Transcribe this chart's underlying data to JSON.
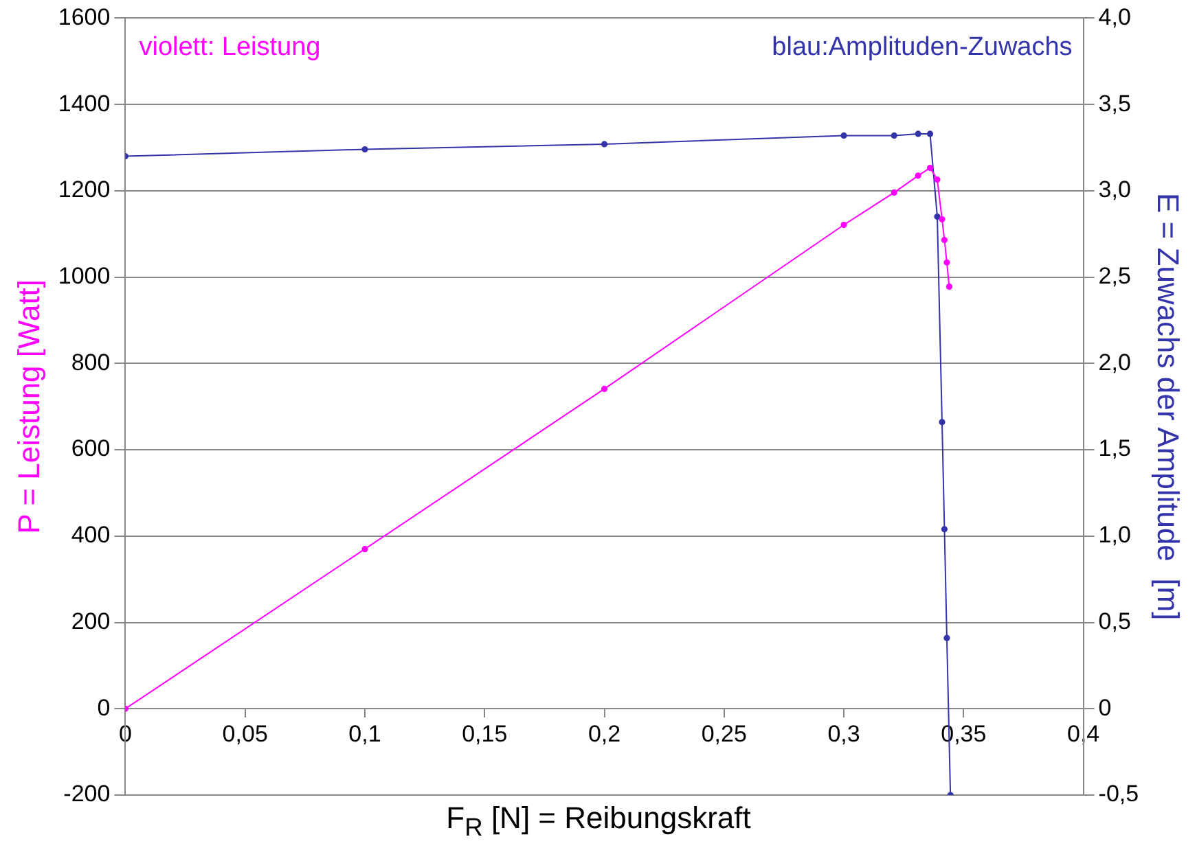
{
  "chart_data": {
    "type": "line",
    "xlabel": "F$_{R}$ [N] = Reibungskraft",
    "ylabel": "P = Leistung [Watt]",
    "y2label": "E = Zuwachs der Amplitude  [m]",
    "annotations": [
      "violett: Leistung",
      "blau:Amplituden-Zuwachs"
    ],
    "series": [
      {
        "color": "#ff00ff",
        "x": [
          0,
          0.1,
          0.2,
          0.3,
          0.321,
          0.331,
          0.336,
          0.339,
          0.341,
          0.342,
          0.343,
          0.344
        ],
        "values": [
          0,
          370,
          741,
          1121,
          1196,
          1235,
          1253,
          1226,
          1134,
          1086,
          1034,
          978
        ]
      },
      {
        "color": "#3333aa",
        "axis": "y2",
        "x": [
          0,
          0.1,
          0.2,
          0.3,
          0.321,
          0.331,
          0.336,
          0.339,
          0.341,
          0.342,
          0.343,
          0.3445
        ],
        "values": [
          3.2,
          3.24,
          3.27,
          3.32,
          3.32,
          3.33,
          3.33,
          2.85,
          1.66,
          1.04,
          0.41,
          -0.5
        ]
      }
    ],
    "xlim": [
      0,
      0.4
    ],
    "xticks": [
      {
        "value": 0,
        "label": "0"
      },
      {
        "value": 0.05,
        "label": "0,05"
      },
      {
        "value": 0.1,
        "label": "0,1"
      },
      {
        "value": 0.15,
        "label": "0,15"
      },
      {
        "value": 0.2,
        "label": "0,2"
      },
      {
        "value": 0.25,
        "label": "0,25"
      },
      {
        "value": 0.3,
        "label": "0,3"
      },
      {
        "value": 0.35,
        "label": "0,35"
      },
      {
        "value": 0.4,
        "label": "0,4"
      }
    ],
    "ylim": [
      -200,
      1600
    ],
    "yticks": [
      -200,
      0,
      200,
      400,
      600,
      800,
      1000,
      1200,
      1400,
      1600
    ],
    "y2lim": [
      -0.5,
      4
    ],
    "y2ticks": [
      {
        "value": -0.5,
        "label": "-0,5"
      },
      0,
      {
        "value": 0.5,
        "label": "0,5"
      },
      {
        "value": 1,
        "label": "1,0"
      },
      {
        "value": 1.5,
        "label": "1,5"
      },
      {
        "value": 2,
        "label": "2,0"
      },
      {
        "value": 2.5,
        "label": "2,5"
      },
      {
        "value": 3,
        "label": "3,0"
      },
      {
        "value": 3.5,
        "label": "3,5"
      },
      {
        "value": 4,
        "label": "4,0"
      }
    ],
    "grid": "y",
    "legend": false,
    "marker": "circle",
    "line_style": "solid"
  }
}
